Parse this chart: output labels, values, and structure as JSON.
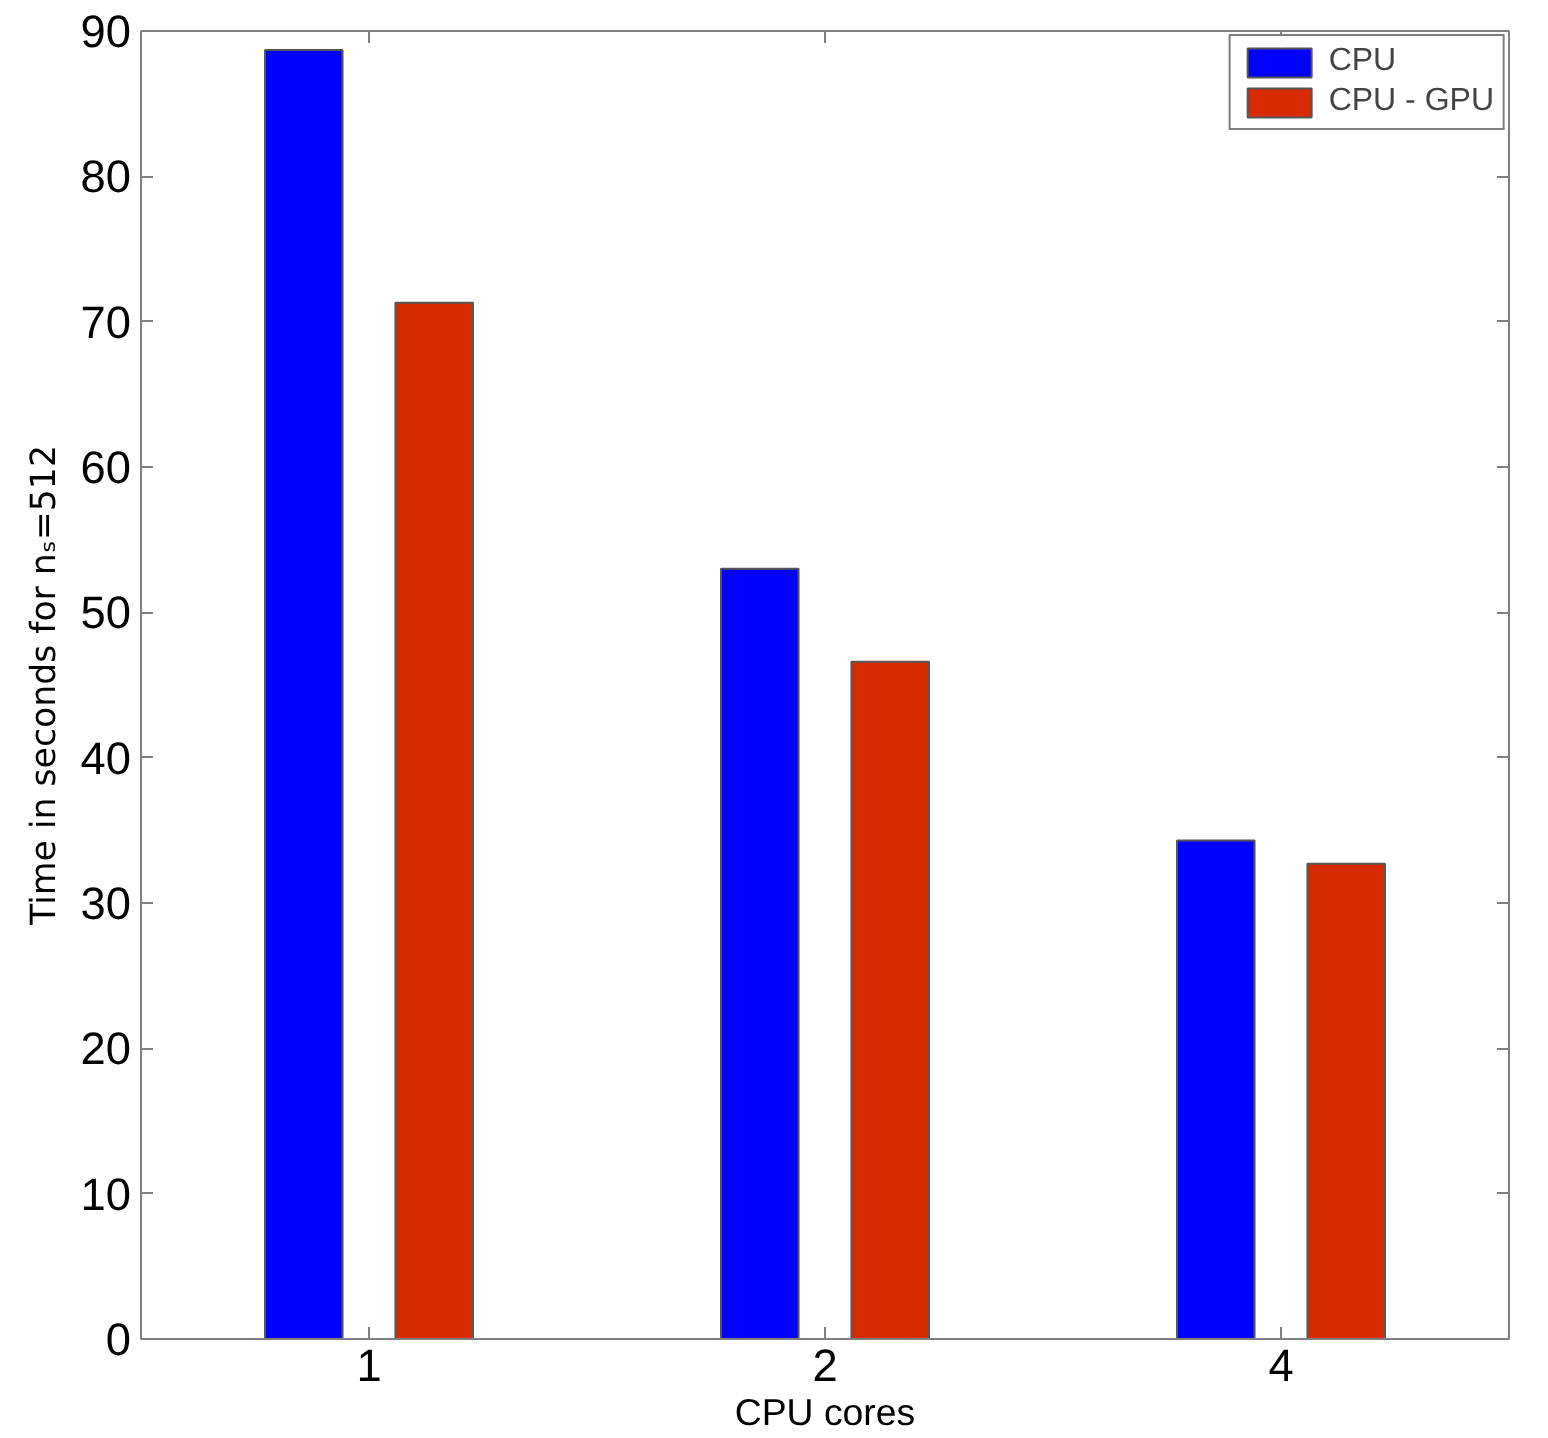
{
  "chart_data": {
    "type": "bar",
    "xlabel": "CPU cores",
    "ylabel": "Time in seconds for nₛ=512",
    "categories": [
      "1",
      "2",
      "4"
    ],
    "series": [
      {
        "name": "CPU",
        "color": "#0000ff",
        "values": [
          88.7,
          53.0,
          34.3
        ]
      },
      {
        "name": "CPU - GPU",
        "color": "#d82a00",
        "values": [
          71.3,
          46.6,
          32.7
        ]
      }
    ],
    "ylim": [
      0,
      90
    ],
    "yticks": [
      0,
      10,
      20,
      30,
      40,
      50,
      60,
      70,
      80,
      90
    ],
    "grid": false,
    "legend": "top right"
  }
}
